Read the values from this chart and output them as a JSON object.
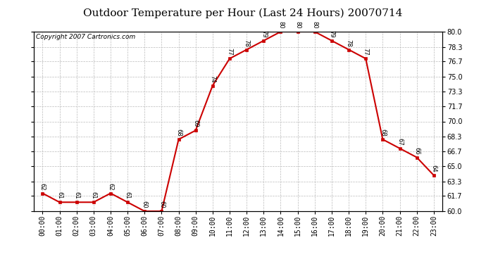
{
  "title": "Outdoor Temperature per Hour (Last 24 Hours) 20070714",
  "copyright": "Copyright 2007 Cartronics.com",
  "hours": [
    "00:00",
    "01:00",
    "02:00",
    "03:00",
    "04:00",
    "05:00",
    "06:00",
    "07:00",
    "08:00",
    "09:00",
    "10:00",
    "11:00",
    "12:00",
    "13:00",
    "14:00",
    "15:00",
    "16:00",
    "17:00",
    "18:00",
    "19:00",
    "20:00",
    "21:00",
    "22:00",
    "23:00"
  ],
  "temps": [
    62,
    61,
    61,
    61,
    62,
    61,
    60,
    60,
    68,
    69,
    74,
    77,
    78,
    79,
    80,
    80,
    80,
    79,
    78,
    77,
    68,
    67,
    66,
    64
  ],
  "ylim": [
    60.0,
    80.0
  ],
  "yticks": [
    60.0,
    61.7,
    63.3,
    65.0,
    66.7,
    68.3,
    70.0,
    71.7,
    73.3,
    75.0,
    76.7,
    78.3,
    80.0
  ],
  "line_color": "#cc0000",
  "marker_color": "#cc0000",
  "bg_color": "#ffffff",
  "grid_color": "#bbbbbb",
  "title_fontsize": 11,
  "copyright_fontsize": 6.5,
  "label_fontsize": 7,
  "annot_fontsize": 6
}
